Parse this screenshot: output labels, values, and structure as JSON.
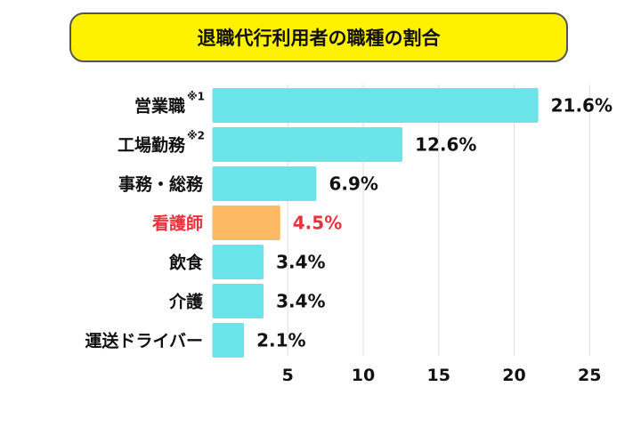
{
  "chart_data": {
    "type": "bar",
    "orientation": "horizontal",
    "title": "退職代行利用者の職種の割合",
    "categories": [
      "営業職",
      "工場勤務",
      "事務・総務",
      "看護師",
      "飲食",
      "介護",
      "運送ドライバー"
    ],
    "notes": [
      "※1",
      "※2",
      "",
      "",
      "",
      "",
      ""
    ],
    "values": [
      21.6,
      12.6,
      6.9,
      4.5,
      3.4,
      3.4,
      2.1
    ],
    "value_labels": [
      "21.6%",
      "12.6%",
      "6.9%",
      "4.5%",
      "3.4%",
      "3.4%",
      "2.1%"
    ],
    "highlight_index": 3,
    "xticks": [
      5,
      10,
      15,
      20,
      25
    ],
    "xlim": [
      0,
      25
    ],
    "grid": true,
    "colors": {
      "bar": "#6ae4e8",
      "highlight_bar": "#fdb863",
      "highlight_text": "#e8323c",
      "text": "#111111"
    }
  }
}
